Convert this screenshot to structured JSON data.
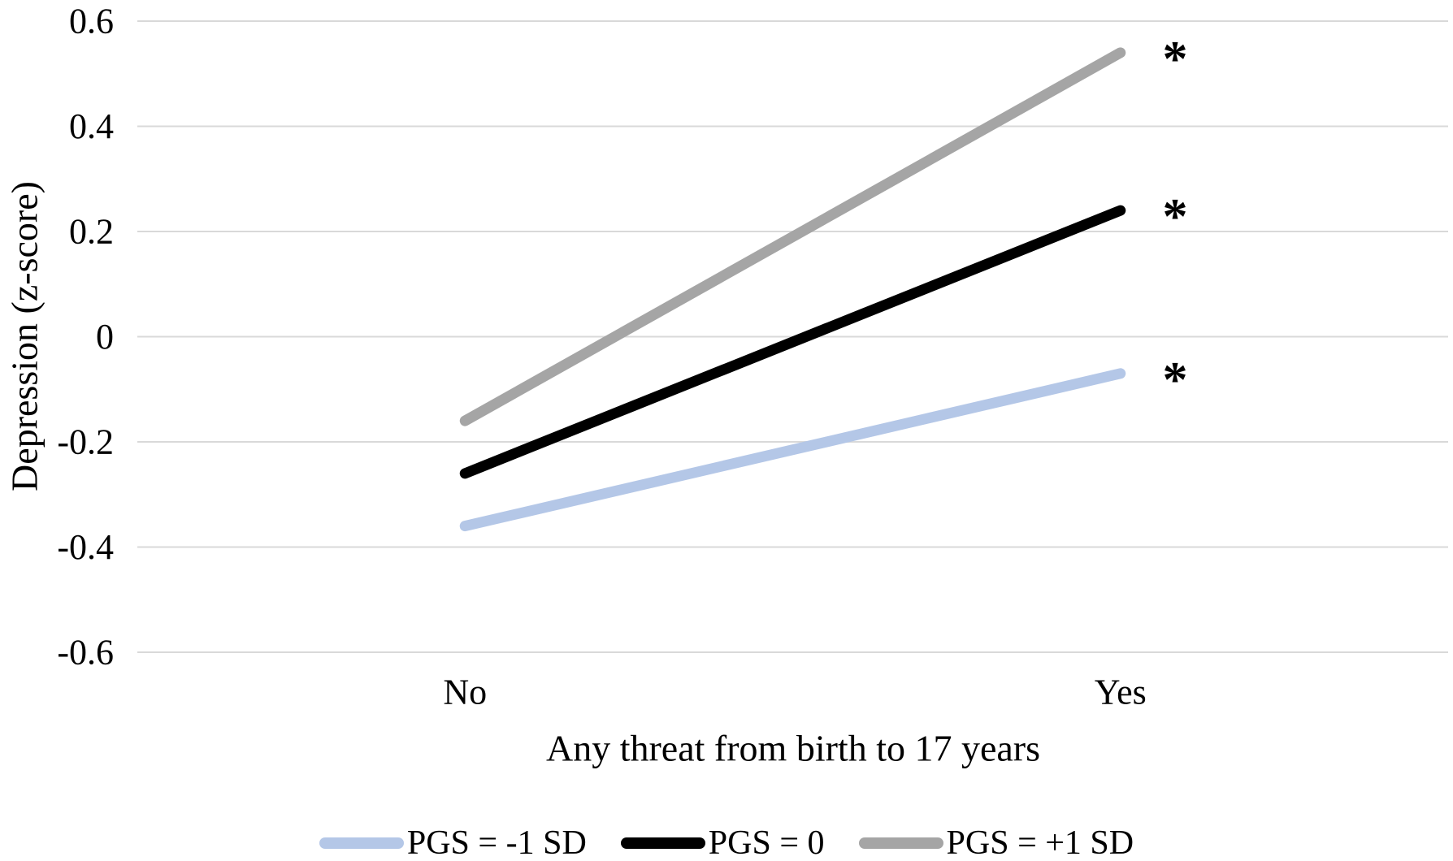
{
  "chart_data": {
    "type": "line",
    "categories": [
      "No",
      "Yes"
    ],
    "series": [
      {
        "name": "PGS = -1 SD",
        "color": "#b4c7e7",
        "values": [
          -0.36,
          -0.07
        ],
        "endpoint_annotation": "*"
      },
      {
        "name": "PGS = 0",
        "color": "#000000",
        "values": [
          -0.26,
          0.24
        ],
        "endpoint_annotation": "*"
      },
      {
        "name": "PGS = +1 SD",
        "color": "#a5a5a5",
        "values": [
          -0.16,
          0.54
        ],
        "endpoint_annotation": "*"
      }
    ],
    "xlabel": "Any threat from birth to 17 years",
    "ylabel": "Depression (z-score)",
    "ylim": [
      -0.6,
      0.6
    ],
    "yticks": [
      0.6,
      0.4,
      0.2,
      0,
      -0.2,
      -0.4,
      -0.6
    ],
    "ytick_labels": [
      "0.6",
      "0.4",
      "0.2",
      "0",
      "-0.2",
      "-0.4",
      "-0.6"
    ],
    "grid": true,
    "gridline_color": "#d9d9d9",
    "text_color": "#000000",
    "background": "#ffffff",
    "legend_position": "bottom",
    "line_width": 13
  }
}
